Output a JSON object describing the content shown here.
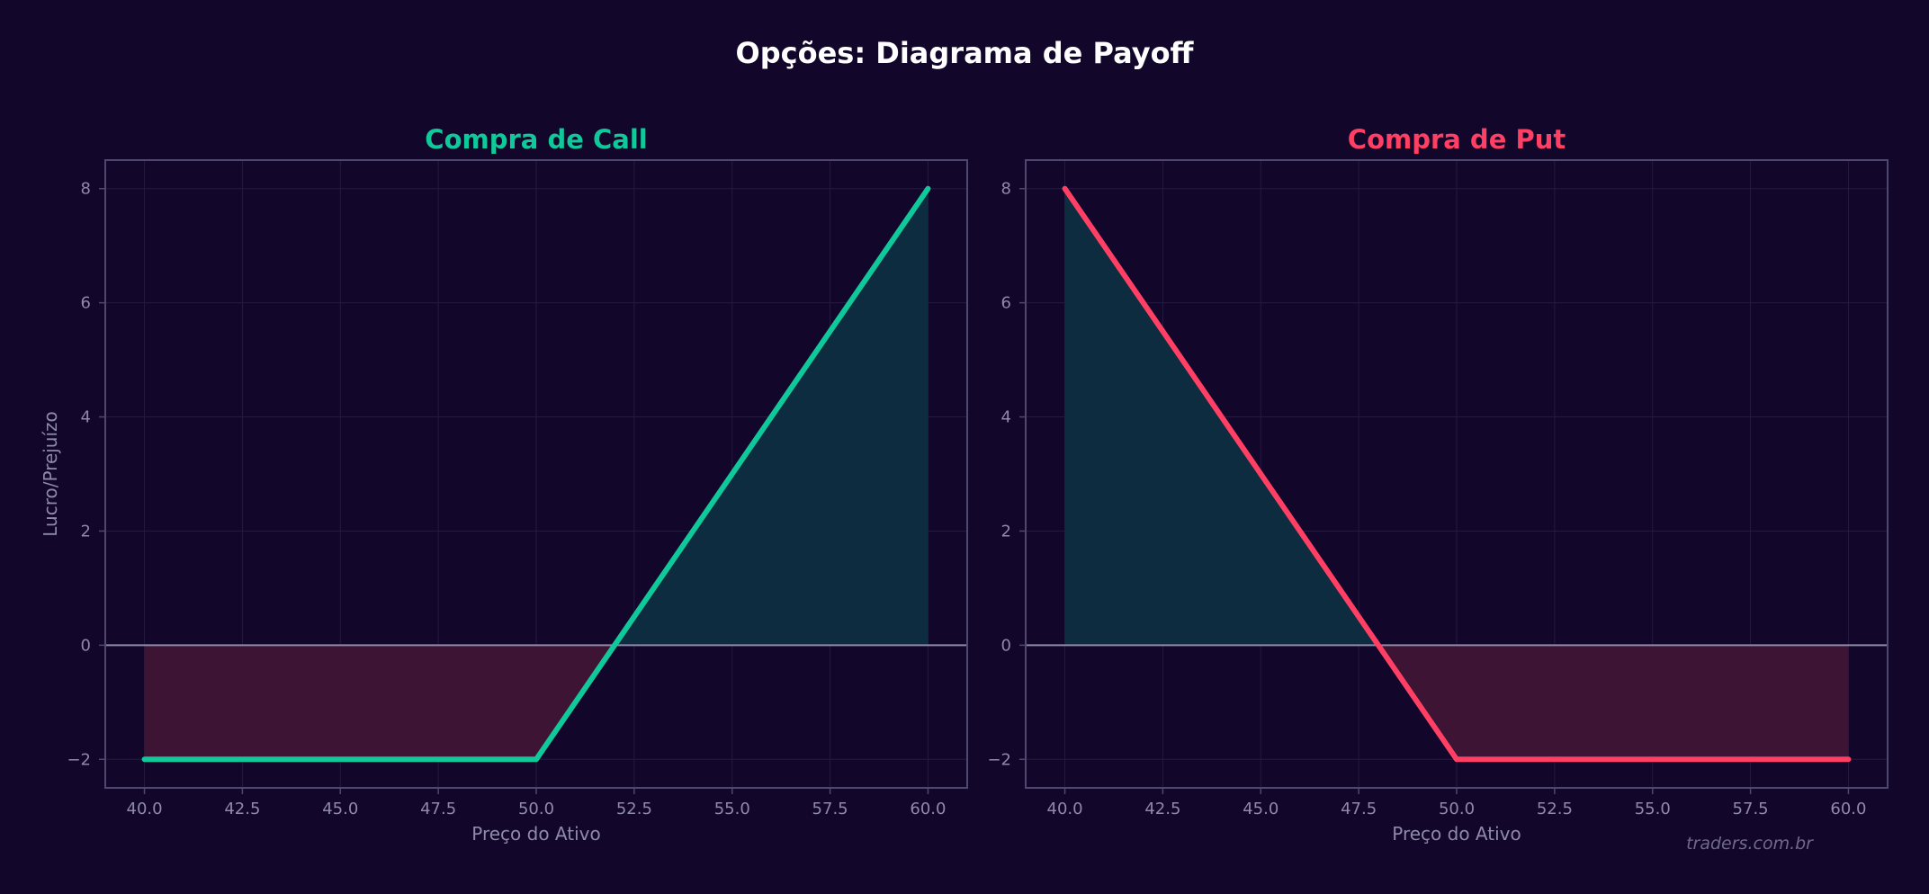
{
  "figure": {
    "title": "Opções: Diagrama de Payoff",
    "watermark": "traders.com.br",
    "colors": {
      "background": "#12062a",
      "axes_frame": "#4e4870",
      "grid": "#241b40",
      "zero_line": "#8e8aa8",
      "tick_text": "#8e8aa8",
      "profit_fill": "#0d2c40",
      "loss_fill": "#3e1434"
    }
  },
  "chart_data": [
    {
      "type": "line",
      "title": "Compra de Call",
      "title_color": "#10c99b",
      "line_color": "#10c99b",
      "xlabel": "Preço do Ativo",
      "ylabel": "Lucro/Prejuízo",
      "xlim": [
        39,
        61
      ],
      "ylim": [
        -2.5,
        8.5
      ],
      "xticks": [
        "40.0",
        "42.5",
        "45.0",
        "47.5",
        "50.0",
        "52.5",
        "55.0",
        "57.5",
        "60.0"
      ],
      "yticks": [
        "−2",
        "0",
        "2",
        "4",
        "6",
        "8"
      ],
      "grid": true,
      "fill_between_zero": true,
      "series": [
        {
          "x": [
            40,
            50,
            60
          ],
          "y": [
            -2,
            -2,
            8
          ]
        }
      ]
    },
    {
      "type": "line",
      "title": "Compra de Put",
      "title_color": "#ff3f63",
      "line_color": "#ff3f63",
      "xlabel": "Preço do Ativo",
      "ylabel": "",
      "xlim": [
        39,
        61
      ],
      "ylim": [
        -2.5,
        8.5
      ],
      "xticks": [
        "40.0",
        "42.5",
        "45.0",
        "47.5",
        "50.0",
        "52.5",
        "55.0",
        "57.5",
        "60.0"
      ],
      "yticks": [
        "−2",
        "0",
        "2",
        "4",
        "6",
        "8"
      ],
      "grid": true,
      "fill_between_zero": true,
      "series": [
        {
          "x": [
            40,
            50,
            60
          ],
          "y": [
            8,
            -2,
            -2
          ]
        }
      ]
    }
  ]
}
